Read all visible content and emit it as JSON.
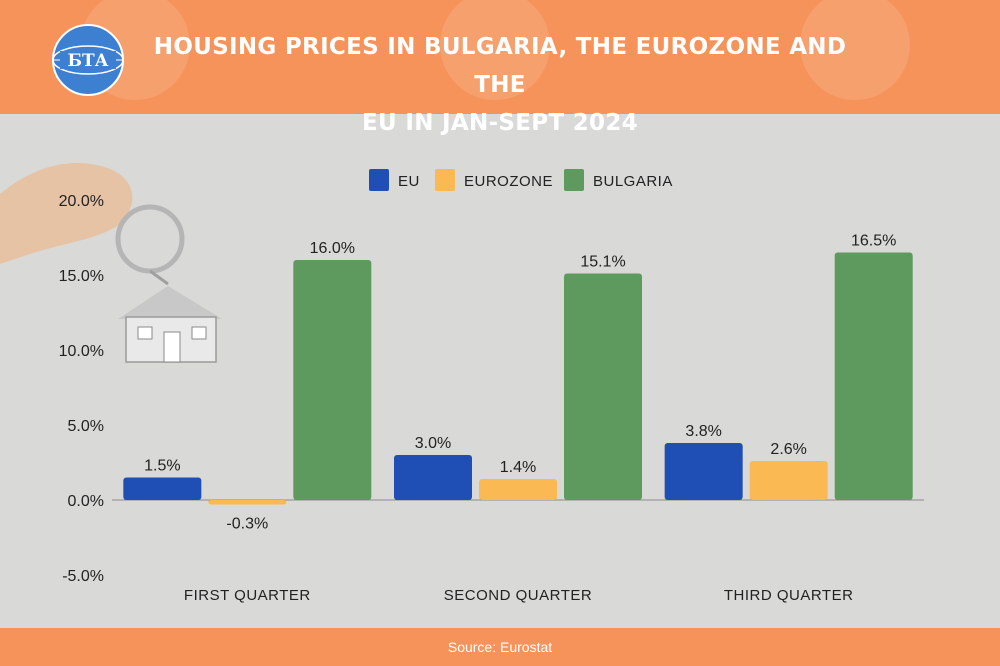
{
  "header": {
    "logo_text": "БТА",
    "title_line1": "HOUSING PRICES IN BULGARIA, THE EUROZONE AND THE",
    "title_line2": "EU IN JAN-SEPT 2024",
    "color": "#f5935a"
  },
  "footer": {
    "source": "Source: Eurostat"
  },
  "chart_data": {
    "type": "bar",
    "title": "HOUSING PRICES IN BULGARIA, THE EUROZONE AND THE EU IN JAN-SEPT 2024",
    "categories": [
      "FIRST QUARTER",
      "SECOND QUARTER",
      "THIRD QUARTER"
    ],
    "series": [
      {
        "name": "EU",
        "color": "#1f4fb4",
        "values": [
          1.5,
          3.0,
          3.8
        ],
        "labels": [
          "1.5%",
          "3.0%",
          "3.8%"
        ]
      },
      {
        "name": "EUROZONE",
        "color": "#fbb954",
        "values": [
          -0.3,
          1.4,
          2.6
        ],
        "labels": [
          "-0.3%",
          "1.4%",
          "2.6%"
        ]
      },
      {
        "name": "BULGARIA",
        "color": "#5e9a5e",
        "values": [
          16.0,
          15.1,
          16.5
        ],
        "labels": [
          "16.0%",
          "15.1%",
          "16.5%"
        ]
      }
    ],
    "ylim": [
      -5,
      20
    ],
    "yticks": [
      -5,
      0,
      5,
      10,
      15,
      20
    ],
    "ytick_labels": [
      "-5.0%",
      "0.0%",
      "5.0%",
      "10.0%",
      "15.0%",
      "20.0%"
    ],
    "legend": "top-center",
    "grid": false
  }
}
